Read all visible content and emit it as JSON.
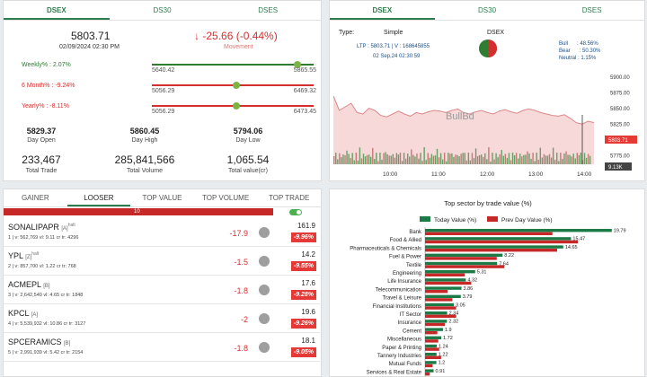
{
  "index_panel": {
    "tabs": [
      "DSEX",
      "DS30",
      "DSES"
    ],
    "value": "5803.71",
    "datetime": "02/09/2024 02:30 PM",
    "change": "-25.66 (-0.44%)",
    "change_label": "Movement",
    "ranges": [
      {
        "label": "Weekly% : 2.07%",
        "low": "5640.42",
        "high": "5865.55",
        "position": 0.9,
        "color": "#2e7d32"
      },
      {
        "label": "6 Month% : -9.24%",
        "low": "5056.29",
        "high": "6469.32",
        "position": 0.52,
        "color": "#d32f2f"
      },
      {
        "label": "Yearly% : -8.11%",
        "low": "5056.29",
        "high": "6473.45",
        "position": 0.52,
        "color": "#d32f2f"
      }
    ],
    "stats": [
      {
        "value": "5829.37",
        "label": "Day Open"
      },
      {
        "value": "5860.45",
        "label": "Day High"
      },
      {
        "value": "5794.06",
        "label": "Day Low"
      }
    ],
    "big_stats": [
      {
        "value": "233,467",
        "label": "Total Trade"
      },
      {
        "value": "285,841,566",
        "label": "Total Volume"
      },
      {
        "value": "1,065.54",
        "label": "Total value(cr)"
      }
    ]
  },
  "chart_panel": {
    "tabs": [
      "DSEX",
      "DS30",
      "DSES"
    ],
    "type_label": "Type:",
    "type_value": "Simple",
    "index_name": "DSEX",
    "ltp": "LTP : 5803.71 | V : 168645855",
    "chart_date": "02 Sep,24 02:30:59",
    "bull": "Bull      : 48.56%",
    "bear": "Bear      : 50.30%",
    "neutral": "Neutral : 1.15%",
    "watermark": "BullBd",
    "y_ticks": [
      "5900.00",
      "5875.00",
      "5850.00",
      "5825.00",
      "5800.00",
      "5775.00"
    ],
    "x_ticks": [
      "10:00",
      "11:00",
      "12:00",
      "13:00",
      "14:00"
    ],
    "last_price_tag": "5803.71",
    "volume_tag": "9.13K"
  },
  "movers_panel": {
    "tabs": [
      "GAINER",
      "LOOSER",
      "TOP VALUE",
      "TOP VOLUME",
      "TOP TRADE"
    ],
    "bar_count": "10",
    "rows": [
      {
        "name": "SONALIPAPR",
        "tag": "[A]",
        "sup": "halt",
        "detail": "1 | v: 562,769   vl: 9.11 cr   tr: 4296",
        "change": "-17.9",
        "price": "161.9",
        "pct": "-9.96%"
      },
      {
        "name": "YPL",
        "tag": "[Z]",
        "sup": "halt",
        "detail": "2 | v: 857,700   vl: 1.22 cr   tr: 768",
        "change": "-1.5",
        "price": "14.2",
        "pct": "-9.55%"
      },
      {
        "name": "ACMEPL",
        "tag": "[B]",
        "sup": "",
        "detail": "3 | v: 2,642,540   vl: 4.65 cr   tr: 1848",
        "change": "-1.8",
        "price": "17.6",
        "pct": "-9.28%"
      },
      {
        "name": "KPCL",
        "tag": "[A]",
        "sup": "",
        "detail": "4 | v: 5,539,932   vl: 10.86 cr   tr: 3127",
        "change": "-2",
        "price": "19.6",
        "pct": "-9.26%"
      },
      {
        "name": "SPCERAMICS",
        "tag": "[B]",
        "sup": "",
        "detail": "5 | v: 2,991,939   vl: 5.42 cr   tr: 2154",
        "change": "-1.8",
        "price": "18.1",
        "pct": "-9.05%"
      }
    ]
  },
  "chart_data": {
    "type": "bar",
    "title": "Top sector by trade value (%)",
    "categories": [
      "Bank",
      "Food & Allied",
      "Pharmaceuticals & Chemicals",
      "Fuel & Power",
      "Textile",
      "Engineering",
      "Life Insurance",
      "Telecommunication",
      "Travel & Leisure",
      "Financial Institutions",
      "IT Sector",
      "Insurance",
      "Cement",
      "Miscellaneous",
      "Paper & Printing",
      "Tannery Industries",
      "Mutual Funds",
      "Services & Real Estate"
    ],
    "series": [
      {
        "name": "Today Value (%)",
        "color": "#1b7a45",
        "values": [
          19.79,
          15.47,
          14.65,
          8.22,
          7.64,
          5.31,
          4.32,
          3.86,
          3.79,
          3.05,
          2.34,
          2.32,
          1.9,
          1.72,
          1.24,
          1.22,
          1.2,
          0.91
        ]
      },
      {
        "name": "Prev Day Value (%)",
        "color": "#c62828",
        "values": [
          13.5,
          16.2,
          14.0,
          7.6,
          8.4,
          4.2,
          4.9,
          2.4,
          2.9,
          3.3,
          3.3,
          2.1,
          1.3,
          1.4,
          1.5,
          1.7,
          0.8,
          0.5
        ]
      }
    ],
    "xlim": [
      0,
      20
    ],
    "legend": "top"
  }
}
